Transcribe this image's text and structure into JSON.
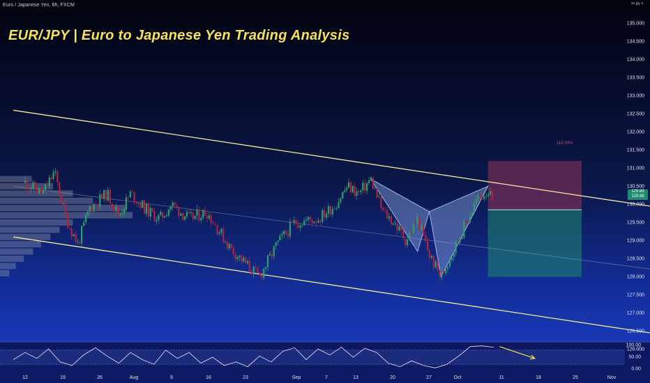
{
  "header": {
    "symbol_line": "Euro / Japanese Yen, 8h, FXCM",
    "title": "EUR/JPY | Euro to Japanese Yen Trading Analysis",
    "top_right": "¹³ ʲᵖʸ ³"
  },
  "colors": {
    "channel_lines": "#f3ec9a",
    "up_candle": "#2f9e6b",
    "down_candle": "#b0233e",
    "pattern_fill": "#8aa4dd",
    "stop_zone": "#b23a5a",
    "target_zone": "#1f8a6e",
    "arrow": "#f6e15a"
  },
  "overlay": {
    "risk_reward_pct": "115.00%",
    "price_tag": [
      "129.89",
      "129.88"
    ]
  },
  "chart_data": {
    "type": "candlestick",
    "interval": "8h",
    "y_range": [
      126.0,
      135.0
    ],
    "y_ticks": [
      "135.000",
      "134.500",
      "134.000",
      "133.500",
      "133.000",
      "132.500",
      "132.000",
      "131.500",
      "131.000",
      "130.500",
      "130.000",
      "129.500",
      "129.000",
      "128.500",
      "128.000",
      "127.500",
      "127.000",
      "126.500",
      "126.000"
    ],
    "x_ticks": [
      "12",
      "19",
      "26",
      "Aug",
      "9",
      "16",
      "23",
      "Sep",
      "7",
      "13",
      "20",
      "27",
      "Oct",
      "11",
      "18",
      "25",
      "Nov"
    ],
    "price_path": [
      {
        "d": "Jul 12",
        "p": 130.6
      },
      {
        "d": "Jul 15",
        "p": 130.3
      },
      {
        "d": "Jul 17",
        "p": 130.9
      },
      {
        "d": "Jul 19",
        "p": 129.6
      },
      {
        "d": "Jul 21",
        "p": 128.9
      },
      {
        "d": "Jul 23",
        "p": 129.9
      },
      {
        "d": "Jul 26",
        "p": 130.3
      },
      {
        "d": "Jul 28",
        "p": 129.7
      },
      {
        "d": "Jul 30",
        "p": 130.3
      },
      {
        "d": "Aug 2",
        "p": 129.8
      },
      {
        "d": "Aug 4",
        "p": 129.6
      },
      {
        "d": "Aug 6",
        "p": 130.0
      },
      {
        "d": "Aug 9",
        "p": 129.6
      },
      {
        "d": "Aug 12",
        "p": 129.8
      },
      {
        "d": "Aug 16",
        "p": 128.8
      },
      {
        "d": "Aug 19",
        "p": 128.3
      },
      {
        "d": "Aug 21",
        "p": 128.0
      },
      {
        "d": "Aug 24",
        "p": 128.9
      },
      {
        "d": "Aug 27",
        "p": 129.5
      },
      {
        "d": "Aug 31",
        "p": 129.6
      },
      {
        "d": "Sep 3",
        "p": 130.0
      },
      {
        "d": "Sep 5",
        "p": 130.5
      },
      {
        "d": "Sep 7",
        "p": 130.3
      },
      {
        "d": "Sep 9",
        "p": 130.7
      },
      {
        "d": "Sep 11",
        "p": 129.8
      },
      {
        "d": "Sep 13",
        "p": 129.5
      },
      {
        "d": "Sep 15",
        "p": 129.0
      },
      {
        "d": "Sep 17",
        "p": 129.6
      },
      {
        "d": "Sep 19",
        "p": 128.6
      },
      {
        "d": "Sep 21",
        "p": 128.0
      },
      {
        "d": "Sep 23",
        "p": 128.7
      },
      {
        "d": "Sep 25",
        "p": 129.4
      },
      {
        "d": "Sep 27",
        "p": 130.1
      },
      {
        "d": "Sep 29",
        "p": 130.4
      },
      {
        "d": "Sep 30",
        "p": 129.9
      }
    ],
    "volume_profile": [
      {
        "price": 130.7,
        "vol": 0.24
      },
      {
        "price": 130.5,
        "vol": 0.4
      },
      {
        "price": 130.3,
        "vol": 0.55
      },
      {
        "price": 130.1,
        "vol": 0.7
      },
      {
        "price": 129.9,
        "vol": 0.95
      },
      {
        "price": 129.7,
        "vol": 1.0
      },
      {
        "price": 129.5,
        "vol": 0.55
      },
      {
        "price": 129.3,
        "vol": 0.45
      },
      {
        "price": 129.1,
        "vol": 0.38
      },
      {
        "price": 128.9,
        "vol": 0.31
      },
      {
        "price": 128.7,
        "vol": 0.25
      },
      {
        "price": 128.5,
        "vol": 0.18
      },
      {
        "price": 128.3,
        "vol": 0.12
      },
      {
        "price": 128.1,
        "vol": 0.07
      }
    ],
    "channel": {
      "upper": [
        [
          "Jul 10",
          132.6
        ],
        [
          "Nov 6",
          129.7
        ]
      ],
      "lower": [
        [
          "Jul 10",
          129.1
        ],
        [
          "Nov 6",
          126.2
        ]
      ],
      "mid": [
        [
          "Jul 10",
          130.5
        ],
        [
          "Nov 6",
          128.0
        ]
      ]
    },
    "harmonic_pattern": {
      "X": [
        "Sep 9",
        130.7
      ],
      "A": [
        "Sep 17",
        128.7
      ],
      "B": [
        "Sep 19",
        129.8
      ],
      "C": [
        "Sep 21",
        128.0
      ],
      "D": [
        "Sep 29",
        130.5
      ]
    },
    "position": {
      "entry": 129.85,
      "stop": 131.2,
      "target": 128.0,
      "start": "Sep 29",
      "end": "Oct 15"
    },
    "oscillator": {
      "y_ticks": [
        "100.00",
        "50.00",
        "0.00"
      ],
      "y_range": [
        0,
        100
      ],
      "upper_level": 80,
      "lower_level": 20,
      "series": [
        {
          "d": "Jul 10",
          "v": 40
        },
        {
          "d": "Jul 12",
          "v": 70
        },
        {
          "d": "Jul 14",
          "v": 45
        },
        {
          "d": "Jul 16",
          "v": 85
        },
        {
          "d": "Jul 18",
          "v": 30
        },
        {
          "d": "Jul 20",
          "v": 15
        },
        {
          "d": "Jul 22",
          "v": 60
        },
        {
          "d": "Jul 24",
          "v": 90
        },
        {
          "d": "Jul 26",
          "v": 55
        },
        {
          "d": "Jul 28",
          "v": 25
        },
        {
          "d": "Jul 30",
          "v": 70
        },
        {
          "d": "Aug 1",
          "v": 40
        },
        {
          "d": "Aug 3",
          "v": 20
        },
        {
          "d": "Aug 5",
          "v": 80
        },
        {
          "d": "Aug 7",
          "v": 45
        },
        {
          "d": "Aug 9",
          "v": 70
        },
        {
          "d": "Aug 11",
          "v": 25
        },
        {
          "d": "Aug 13",
          "v": 50
        },
        {
          "d": "Aug 15",
          "v": 15
        },
        {
          "d": "Aug 17",
          "v": 30
        },
        {
          "d": "Aug 19",
          "v": 10
        },
        {
          "d": "Aug 21",
          "v": 55
        },
        {
          "d": "Aug 23",
          "v": 30
        },
        {
          "d": "Aug 25",
          "v": 75
        },
        {
          "d": "Aug 27",
          "v": 90
        },
        {
          "d": "Aug 29",
          "v": 40
        },
        {
          "d": "Aug 31",
          "v": 85
        },
        {
          "d": "Sep 2",
          "v": 60
        },
        {
          "d": "Sep 4",
          "v": 92
        },
        {
          "d": "Sep 6",
          "v": 50
        },
        {
          "d": "Sep 8",
          "v": 88
        },
        {
          "d": "Sep 10",
          "v": 70
        },
        {
          "d": "Sep 12",
          "v": 25
        },
        {
          "d": "Sep 14",
          "v": 10
        },
        {
          "d": "Sep 16",
          "v": 35
        },
        {
          "d": "Sep 18",
          "v": 15
        },
        {
          "d": "Sep 20",
          "v": 5
        },
        {
          "d": "Sep 22",
          "v": 20
        },
        {
          "d": "Sep 24",
          "v": 55
        },
        {
          "d": "Sep 26",
          "v": 95
        },
        {
          "d": "Sep 28",
          "v": 98
        },
        {
          "d": "Sep 30",
          "v": 92
        }
      ],
      "forecast_arrow": [
        [
          "Oct 1",
          95
        ],
        [
          "Oct 7",
          45
        ]
      ]
    }
  }
}
